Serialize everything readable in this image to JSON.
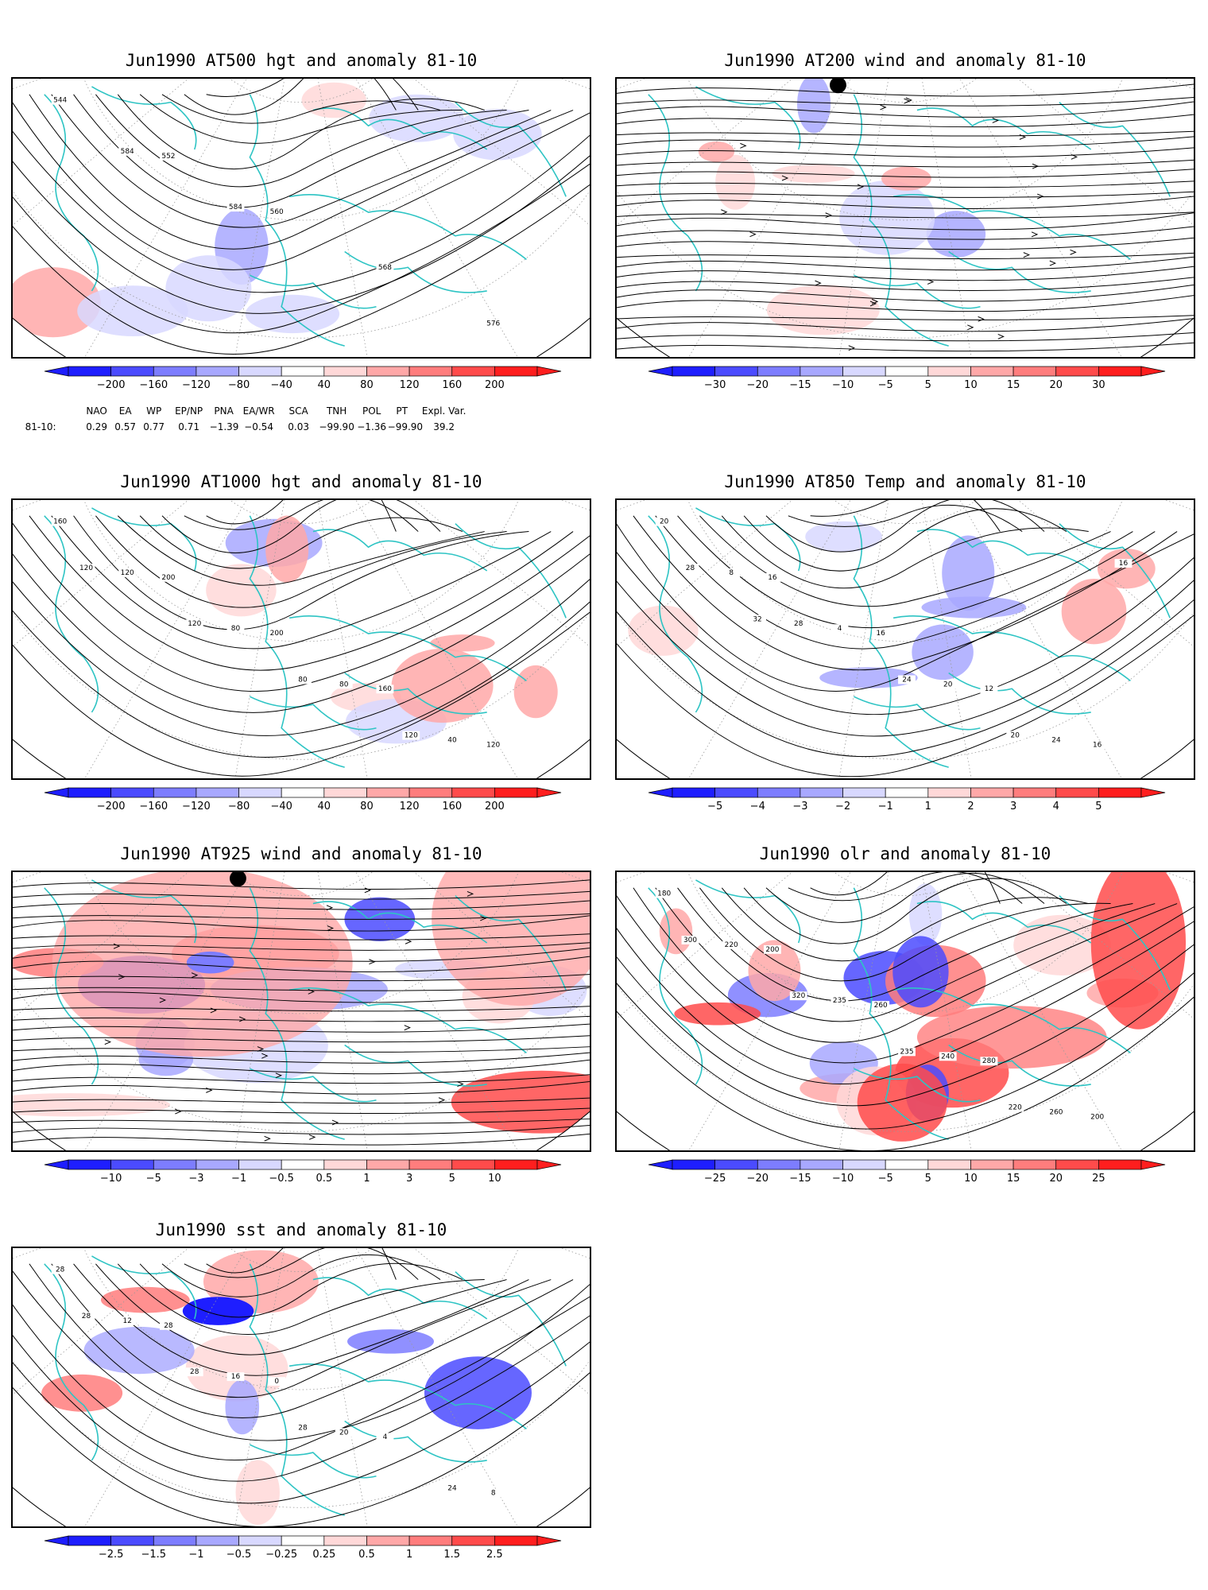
{
  "panels": [
    {
      "id": "p1",
      "title": "Jun1990 AT500 hgt and anomaly 81-10",
      "colorbar": [
        "−200",
        "−160",
        "−120",
        "−80",
        "−40",
        "40",
        "80",
        "120",
        "160",
        "200"
      ],
      "contour_labels": [
        "544",
        "552",
        "560",
        "568",
        "576",
        "584",
        "584"
      ],
      "variable": "500 hPa geopotential height",
      "overlay": "height contours"
    },
    {
      "id": "p2",
      "title": "Jun1990 AT200 wind and anomaly 81-10",
      "colorbar": [
        "−30",
        "−20",
        "−15",
        "−10",
        "−5",
        "5",
        "10",
        "15",
        "20",
        "30"
      ],
      "contour_labels": [],
      "variable": "200 hPa wind",
      "overlay": "streamlines"
    },
    {
      "id": "p3",
      "title": "Jun1990 AT1000 hgt and anomaly 81-10",
      "colorbar": [
        "−200",
        "−160",
        "−120",
        "−80",
        "−40",
        "40",
        "80",
        "120",
        "160",
        "200"
      ],
      "contour_labels": [
        "160",
        "200",
        "200",
        "160",
        "120",
        "120",
        "80",
        "80",
        "40",
        "120",
        "120",
        "80",
        "120"
      ],
      "variable": "1000 hPa geopotential height",
      "overlay": "height contours"
    },
    {
      "id": "p4",
      "title": "Jun1990 AT850 Temp and anomaly 81-10",
      "colorbar": [
        "−5",
        "−4",
        "−3",
        "−2",
        "−1",
        "1",
        "2",
        "3",
        "4",
        "5"
      ],
      "contour_labels": [
        "20",
        "16",
        "16",
        "12",
        "16",
        "8",
        "4",
        "20",
        "24",
        "28",
        "28",
        "24",
        "20",
        "16",
        "32"
      ],
      "variable": "850 hPa temperature",
      "overlay": "temperature contours"
    },
    {
      "id": "p5",
      "title": "Jun1990 AT925 wind and anomaly 81-10",
      "colorbar": [
        "−10",
        "−5",
        "−3",
        "−1",
        "−0.5",
        "0.5",
        "1",
        "3",
        "5",
        "10"
      ],
      "contour_labels": [],
      "variable": "925 hPa wind",
      "overlay": "streamlines"
    },
    {
      "id": "p6",
      "title": "Jun1990 olr and anomaly 81-10",
      "colorbar": [
        "−25",
        "−20",
        "−15",
        "−10",
        "−5",
        "5",
        "10",
        "15",
        "20",
        "25"
      ],
      "contour_labels": [
        "180",
        "200",
        "260",
        "280",
        "200",
        "220",
        "235",
        "240",
        "260",
        "300",
        "320",
        "235",
        "220"
      ],
      "variable": "outgoing longwave radiation",
      "overlay": "OLR contours"
    },
    {
      "id": "p7",
      "title": "Jun1990 sst and anomaly 81-10",
      "colorbar": [
        "−2.5",
        "−1.5",
        "−1",
        "−0.5",
        "−0.25",
        "0.25",
        "0.5",
        "1",
        "1.5",
        "2.5"
      ],
      "contour_labels": [
        "28",
        "28",
        "0",
        "4",
        "8",
        "12",
        "16",
        "20",
        "24",
        "28",
        "28",
        "28"
      ],
      "variable": "sea surface temperature",
      "overlay": "SST contours"
    }
  ],
  "teleconnection": {
    "headers": [
      "NAO",
      "EA",
      "WP",
      "EP/NP",
      "PNA",
      "EA/WR",
      "SCA",
      "TNH",
      "POL",
      "PT",
      "Expl. Var."
    ],
    "row_label": "81-10:",
    "values": [
      "0.29",
      "0.57",
      "0.77",
      "0.71",
      "−1.39",
      "−0.54",
      "0.03",
      "−99.90",
      "−1.36",
      "−99.90",
      "39.2"
    ]
  },
  "colors": {
    "neg": [
      "#1e1eff",
      "#4b4bff",
      "#7d7dff",
      "#a8a8ff",
      "#d8d8ff"
    ],
    "pos": [
      "#ffd8d8",
      "#ffa8a8",
      "#ff7d7d",
      "#ff4b4b",
      "#ff1e1e"
    ],
    "coast": "#2ec4c4",
    "grid": "#999999",
    "contour": "#000000"
  }
}
